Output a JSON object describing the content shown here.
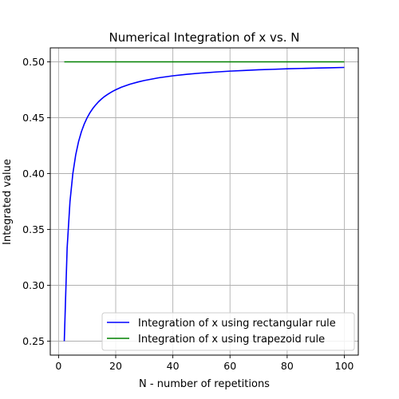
{
  "chart_data": {
    "type": "line",
    "title": "Numerical Integration of x vs. N",
    "xlabel": "N - number of repetitions",
    "ylabel": "Integrated value",
    "xlim": [
      -2.9,
      104.9
    ],
    "ylim": [
      0.2375,
      0.5125
    ],
    "xticks": [
      0,
      20,
      40,
      60,
      80,
      100
    ],
    "xtick_labels": [
      "0",
      "20",
      "40",
      "60",
      "80",
      "100"
    ],
    "yticks": [
      0.25,
      0.3,
      0.35,
      0.4,
      0.45,
      0.5
    ],
    "ytick_labels": [
      "0.25",
      "0.30",
      "0.35",
      "0.40",
      "0.45",
      "0.50"
    ],
    "grid": true,
    "legend_position": "lower-right",
    "series": [
      {
        "name": "Integration of x using rectangular rule",
        "color": "#0000ff",
        "x": [
          2,
          3,
          4,
          5,
          6,
          7,
          8,
          9,
          10,
          11,
          12,
          13,
          14,
          15,
          16,
          17,
          18,
          19,
          20,
          22,
          25,
          28,
          30,
          35,
          40,
          45,
          50,
          55,
          60,
          65,
          70,
          75,
          80,
          85,
          90,
          95,
          100
        ],
        "y": [
          0.25,
          0.3333,
          0.375,
          0.4,
          0.4167,
          0.4286,
          0.4375,
          0.4444,
          0.45,
          0.4545,
          0.4583,
          0.4615,
          0.4643,
          0.4667,
          0.4688,
          0.4706,
          0.4722,
          0.4737,
          0.475,
          0.4773,
          0.48,
          0.4821,
          0.4833,
          0.4857,
          0.4875,
          0.4889,
          0.49,
          0.4909,
          0.4917,
          0.4923,
          0.4929,
          0.4933,
          0.4938,
          0.4941,
          0.4944,
          0.4947,
          0.495
        ]
      },
      {
        "name": "Integration of x using trapezoid rule",
        "color": "#008000",
        "x": [
          2,
          100
        ],
        "y": [
          0.5,
          0.5
        ]
      }
    ]
  }
}
